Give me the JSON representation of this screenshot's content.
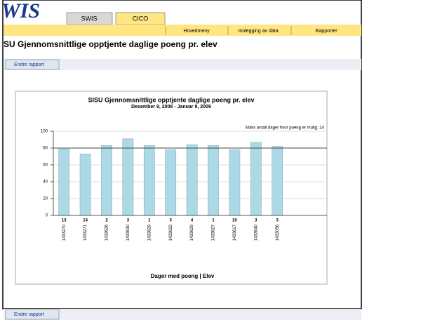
{
  "header": {
    "logo": "WIS",
    "tabs": [
      "SWIS",
      "CICO"
    ],
    "menu": [
      "Hovedmeny",
      "Innlegging av data",
      "Rapporter"
    ]
  },
  "page_title": "SU Gjennomsnittlige opptjente daglige poeng pr. elev",
  "buttons": {
    "top": "Endre rapport",
    "bottom": "Endre rapport"
  },
  "chart_data": {
    "type": "bar",
    "title": "SISU Gjennomsnittlige opptjente daglige poeng pr. elev",
    "subtitle": "Desember 9, 2008 - Januar 9, 2009",
    "annotation": "Maks antall dager hvor poeng er mulig: 14",
    "x_label": "Dager med poeng | Elev",
    "categories": [
      "1433270",
      "1433271",
      "1433626",
      "1433630",
      "1433629",
      "1433622",
      "1433629",
      "1433627",
      "1433617",
      "1433640",
      "1433056"
    ],
    "days": [
      "13",
      "14",
      "2",
      "3",
      "1",
      "3",
      "4",
      "1",
      "10",
      "3",
      "3"
    ],
    "values": [
      79,
      73,
      83,
      91,
      83,
      78,
      84,
      83,
      78,
      87,
      82
    ],
    "color": "#add8e6",
    "ylim": [
      0,
      100
    ],
    "yticks": [
      0,
      20,
      40,
      60,
      80,
      100
    ],
    "grid": true,
    "reference_line": 80
  }
}
